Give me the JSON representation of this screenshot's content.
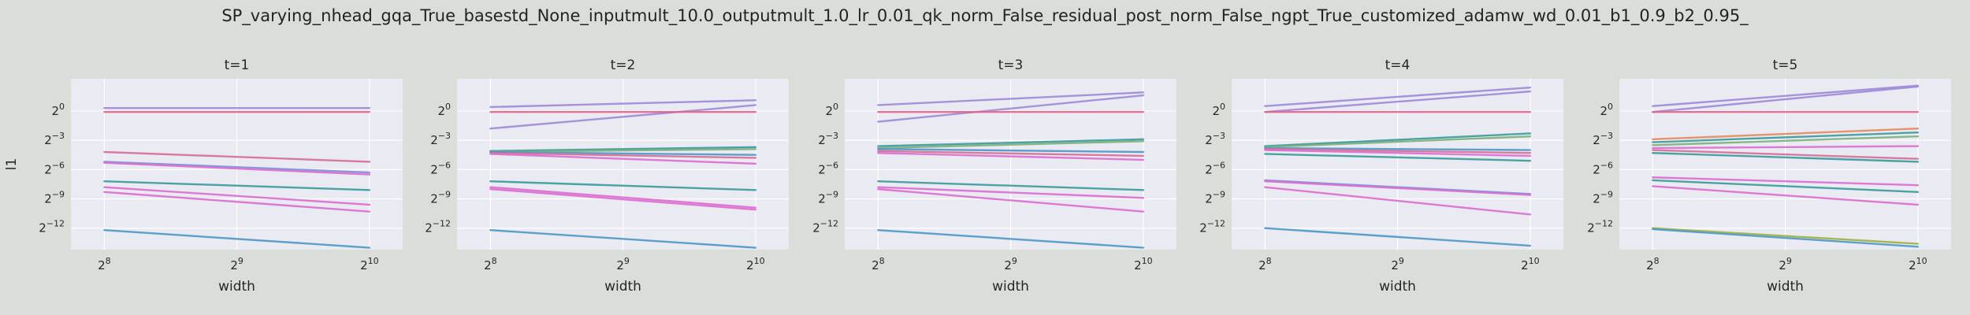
{
  "title": "SP_varying_nhead_gqa_True_basestd_None_inputmult_10.0_outputmult_1.0_lr_0.01_qk_norm_False_residual_post_norm_False_ngpt_True_customized_adamw_wd_0.01_b1_0.9_b2_0.95_",
  "colors": {
    "background": "#d9dfd8",
    "plot_bg": "#eaeaf2",
    "grid": "#ffffff"
  },
  "chart_data": [
    {
      "type": "line",
      "title": "t=1",
      "xlabel": "width",
      "ylabel": "l1",
      "x": [
        256,
        1024
      ],
      "xscale": "log2",
      "yscale": "log2",
      "x_ticks": [
        "2^8",
        "2^9",
        "2^10"
      ],
      "y_ticks": [
        "2^0",
        "2^-3",
        "2^-6",
        "2^-9",
        "2^-12"
      ],
      "xlim": [
        215,
        1218
      ],
      "ylim": [
        -14.2,
        3.3
      ],
      "grid": true,
      "series": [
        {
          "color": "#9c88d8",
          "y": [
            0.3,
            0.3
          ]
        },
        {
          "color": "#e8608c",
          "y": [
            -0.1,
            -0.1
          ]
        },
        {
          "color": "#d66e95",
          "y": [
            -4.2,
            -5.2
          ]
        },
        {
          "color": "#7b8ed8",
          "y": [
            -5.2,
            -6.3
          ]
        },
        {
          "color": "#dc6cd0",
          "y": [
            -5.3,
            -6.5
          ]
        },
        {
          "color": "#3a9a9a",
          "y": [
            -7.2,
            -8.1
          ]
        },
        {
          "color": "#dc6cd0",
          "y": [
            -7.8,
            -9.6
          ]
        },
        {
          "color": "#dc6cd0",
          "y": [
            -8.3,
            -10.3
          ]
        },
        {
          "color": "#4d96c8",
          "y": [
            -12.2,
            -14.0
          ]
        }
      ]
    },
    {
      "type": "line",
      "title": "t=2",
      "xlabel": "width",
      "ylabel": "",
      "x": [
        256,
        1024
      ],
      "xscale": "log2",
      "yscale": "log2",
      "x_ticks": [
        "2^8",
        "2^9",
        "2^10"
      ],
      "y_ticks": [
        "2^0",
        "2^-3",
        "2^-6",
        "2^-9",
        "2^-12"
      ],
      "xlim": [
        215,
        1218
      ],
      "ylim": [
        -14.2,
        3.3
      ],
      "grid": true,
      "series": [
        {
          "color": "#9c88d8",
          "y": [
            0.4,
            1.1
          ]
        },
        {
          "color": "#9c88d8",
          "y": [
            -1.8,
            0.6
          ]
        },
        {
          "color": "#e8608c",
          "y": [
            -0.1,
            -0.1
          ]
        },
        {
          "color": "#3a9a9a",
          "y": [
            -4.1,
            -3.7
          ]
        },
        {
          "color": "#7bb07b",
          "y": [
            -4.2,
            -3.9
          ]
        },
        {
          "color": "#4d96c8",
          "y": [
            -4.2,
            -4.5
          ]
        },
        {
          "color": "#d66e95",
          "y": [
            -4.3,
            -4.8
          ]
        },
        {
          "color": "#dc6cd0",
          "y": [
            -4.4,
            -5.4
          ]
        },
        {
          "color": "#3a9a9a",
          "y": [
            -7.2,
            -8.1
          ]
        },
        {
          "color": "#dc6cd0",
          "y": [
            -7.8,
            -9.9
          ]
        },
        {
          "color": "#dc6cd0",
          "y": [
            -8.0,
            -10.1
          ]
        },
        {
          "color": "#4d96c8",
          "y": [
            -12.2,
            -14.0
          ]
        }
      ]
    },
    {
      "type": "line",
      "title": "t=3",
      "xlabel": "width",
      "ylabel": "",
      "x": [
        256,
        1024
      ],
      "xscale": "log2",
      "yscale": "log2",
      "x_ticks": [
        "2^8",
        "2^9",
        "2^10"
      ],
      "y_ticks": [
        "2^0",
        "2^-3",
        "2^-6",
        "2^-9",
        "2^-12"
      ],
      "xlim": [
        215,
        1218
      ],
      "ylim": [
        -14.2,
        3.3
      ],
      "grid": true,
      "series": [
        {
          "color": "#9c88d8",
          "y": [
            -1.1,
            1.6
          ]
        },
        {
          "color": "#9c88d8",
          "y": [
            0.6,
            1.9
          ]
        },
        {
          "color": "#e8608c",
          "y": [
            -0.1,
            -0.1
          ]
        },
        {
          "color": "#3a9a9a",
          "y": [
            -3.6,
            -2.9
          ]
        },
        {
          "color": "#7bb07b",
          "y": [
            -3.8,
            -3.1
          ]
        },
        {
          "color": "#4d96c8",
          "y": [
            -3.9,
            -4.2
          ]
        },
        {
          "color": "#d66e95",
          "y": [
            -4.1,
            -4.6
          ]
        },
        {
          "color": "#dc6cd0",
          "y": [
            -4.3,
            -5.0
          ]
        },
        {
          "color": "#3a9a9a",
          "y": [
            -7.2,
            -8.1
          ]
        },
        {
          "color": "#dc6cd0",
          "y": [
            -7.8,
            -8.9
          ]
        },
        {
          "color": "#dc6cd0",
          "y": [
            -8.0,
            -10.3
          ]
        },
        {
          "color": "#4d96c8",
          "y": [
            -12.2,
            -14.0
          ]
        }
      ]
    },
    {
      "type": "line",
      "title": "t=4",
      "xlabel": "width",
      "ylabel": "",
      "x": [
        256,
        1024
      ],
      "xscale": "log2",
      "yscale": "log2",
      "x_ticks": [
        "2^8",
        "2^9",
        "2^10"
      ],
      "y_ticks": [
        "2^0",
        "2^-3",
        "2^-6",
        "2^-9",
        "2^-12"
      ],
      "xlim": [
        215,
        1218
      ],
      "ylim": [
        -14.2,
        3.3
      ],
      "grid": true,
      "series": [
        {
          "color": "#9c88d8",
          "y": [
            0.5,
            2.4
          ]
        },
        {
          "color": "#9c88d8",
          "y": [
            -0.1,
            2.0
          ]
        },
        {
          "color": "#e8608c",
          "y": [
            -0.1,
            -0.1
          ]
        },
        {
          "color": "#3a9a9a",
          "y": [
            -3.6,
            -2.3
          ]
        },
        {
          "color": "#7bb07b",
          "y": [
            -3.7,
            -2.6
          ]
        },
        {
          "color": "#4d96c8",
          "y": [
            -3.8,
            -4.0
          ]
        },
        {
          "color": "#d66e95",
          "y": [
            -3.9,
            -4.3
          ]
        },
        {
          "color": "#dc6cd0",
          "y": [
            -4.0,
            -4.6
          ]
        },
        {
          "color": "#3a9a9a",
          "y": [
            -4.4,
            -5.1
          ]
        },
        {
          "color": "#7b8ed8",
          "y": [
            -7.1,
            -8.5
          ]
        },
        {
          "color": "#dc6cd0",
          "y": [
            -7.2,
            -8.6
          ]
        },
        {
          "color": "#dc6cd0",
          "y": [
            -7.8,
            -10.6
          ]
        },
        {
          "color": "#4d96c8",
          "y": [
            -12.0,
            -13.8
          ]
        }
      ]
    },
    {
      "type": "line",
      "title": "t=5",
      "xlabel": "width",
      "ylabel": "",
      "x": [
        256,
        1024
      ],
      "xscale": "log2",
      "yscale": "log2",
      "x_ticks": [
        "2^8",
        "2^9",
        "2^10"
      ],
      "y_ticks": [
        "2^0",
        "2^-3",
        "2^-6",
        "2^-9",
        "2^-12"
      ],
      "xlim": [
        215,
        1218
      ],
      "ylim": [
        -14.2,
        3.3
      ],
      "grid": true,
      "series": [
        {
          "color": "#9c88d8",
          "y": [
            0.5,
            2.6
          ]
        },
        {
          "color": "#9c88d8",
          "y": [
            -0.1,
            2.5
          ]
        },
        {
          "color": "#e8608c",
          "y": [
            -0.1,
            -0.1
          ]
        },
        {
          "color": "#e68a5c",
          "y": [
            -2.9,
            -1.8
          ]
        },
        {
          "color": "#3a9a9a",
          "y": [
            -3.2,
            -2.2
          ]
        },
        {
          "color": "#7bb07b",
          "y": [
            -3.5,
            -2.6
          ]
        },
        {
          "color": "#dc6cd0",
          "y": [
            -3.8,
            -3.6
          ]
        },
        {
          "color": "#d66e95",
          "y": [
            -4.0,
            -4.9
          ]
        },
        {
          "color": "#3a9a9a",
          "y": [
            -4.3,
            -5.2
          ]
        },
        {
          "color": "#dc6cd0",
          "y": [
            -6.8,
            -7.6
          ]
        },
        {
          "color": "#3a9a9a",
          "y": [
            -7.1,
            -8.3
          ]
        },
        {
          "color": "#dc6cd0",
          "y": [
            -7.7,
            -9.6
          ]
        },
        {
          "color": "#9bb340",
          "y": [
            -12.0,
            -13.6
          ]
        },
        {
          "color": "#4d96c8",
          "y": [
            -12.1,
            -13.9
          ]
        }
      ]
    }
  ]
}
